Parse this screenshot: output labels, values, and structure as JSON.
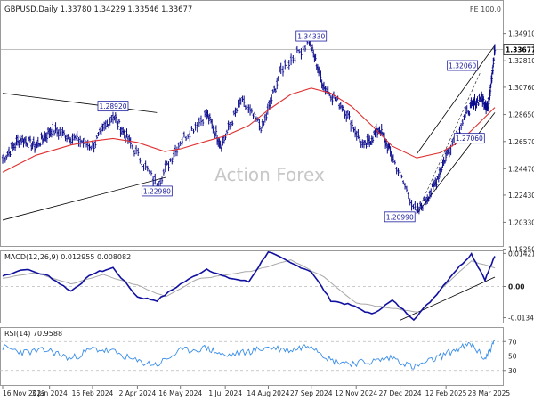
{
  "chart_data": {
    "type": "line",
    "header": "GBPUSD,Daily  1.33780 1.34229 1.33546 1.33677",
    "watermark": "Action Forex",
    "fe_label": "FE 100.0",
    "last_price": "1.33677",
    "x_ticks": [
      {
        "date": "2023-11-16",
        "label": "16 Nov 2023"
      },
      {
        "date": "2024-01-03",
        "label": "3 Jan 2024"
      },
      {
        "date": "2024-02-16",
        "label": "16 Feb 2024"
      },
      {
        "date": "2024-04-02",
        "label": "2 Apr 2024"
      },
      {
        "date": "2024-05-16",
        "label": "16 May 2024"
      },
      {
        "date": "2024-07-01",
        "label": "1 Jul 2024"
      },
      {
        "date": "2024-08-14",
        "label": "14 Aug 2024"
      },
      {
        "date": "2024-09-27",
        "label": "27 Sep 2024"
      },
      {
        "date": "2024-11-12",
        "label": "12 Nov 2024"
      },
      {
        "date": "2024-12-27",
        "label": "27 Dec 2024"
      },
      {
        "date": "2025-02-12",
        "label": "12 Feb 2025"
      },
      {
        "date": "2025-03-28",
        "label": "28 Mar 2025"
      }
    ],
    "price_panel": {
      "ylim": [
        1.185,
        1.375
      ],
      "y_ticks": [
        "1.34910",
        "1.32810",
        "1.30760",
        "1.28650",
        "1.26570",
        "1.24470",
        "1.22430",
        "1.20330",
        "1.18250"
      ],
      "series": [
        {
          "name": "price",
          "color": "#0a0a8c",
          "x": [
            "2023-11-16",
            "2023-12-04",
            "2023-12-20",
            "2024-01-05",
            "2024-01-25",
            "2024-02-16",
            "2024-03-08",
            "2024-03-26",
            "2024-04-22",
            "2024-05-16",
            "2024-06-12",
            "2024-06-27",
            "2024-07-17",
            "2024-08-08",
            "2024-08-27",
            "2024-09-25",
            "2024-10-10",
            "2024-10-30",
            "2024-11-20",
            "2024-12-06",
            "2024-12-20",
            "2025-01-13",
            "2025-01-30",
            "2025-02-14",
            "2025-03-07",
            "2025-03-20",
            "2025-03-27",
            "2025-04-03"
          ],
          "values": [
            1.252,
            1.268,
            1.262,
            1.275,
            1.269,
            1.262,
            1.286,
            1.264,
            1.232,
            1.266,
            1.287,
            1.263,
            1.297,
            1.276,
            1.321,
            1.343,
            1.308,
            1.292,
            1.261,
            1.276,
            1.252,
            1.21,
            1.23,
            1.258,
            1.29,
            1.3,
            1.292,
            1.3368
          ]
        },
        {
          "name": "moving average",
          "color": "#e03030",
          "x": [
            "2023-11-16",
            "2023-12-20",
            "2024-01-25",
            "2024-02-16",
            "2024-03-08",
            "2024-04-02",
            "2024-04-30",
            "2024-05-16",
            "2024-06-12",
            "2024-07-01",
            "2024-07-25",
            "2024-08-14",
            "2024-09-06",
            "2024-09-27",
            "2024-10-17",
            "2024-11-07",
            "2024-11-28",
            "2024-12-19",
            "2025-01-13",
            "2025-02-06",
            "2025-02-27",
            "2025-03-18",
            "2025-04-03"
          ],
          "values": [
            1.242,
            1.255,
            1.263,
            1.266,
            1.268,
            1.265,
            1.258,
            1.26,
            1.266,
            1.27,
            1.278,
            1.29,
            1.302,
            1.307,
            1.303,
            1.293,
            1.278,
            1.262,
            1.253,
            1.257,
            1.266,
            1.28,
            1.292
          ]
        }
      ],
      "price_labels": [
        {
          "label": "1.34330",
          "date": "2024-09-27",
          "value": 1.3433
        },
        {
          "label": "1.28920",
          "date": "2024-03-08",
          "value": 1.2892
        },
        {
          "label": "1.22980",
          "date": "2024-04-22",
          "value": 1.2298
        },
        {
          "label": "1.32060",
          "date": "2025-03-20",
          "value": 1.3206
        },
        {
          "label": "1.27060",
          "date": "2025-03-27",
          "value": 1.2706
        },
        {
          "label": "1.20990",
          "date": "2025-01-13",
          "value": 1.2099
        }
      ]
    },
    "macd_panel": {
      "label": "MACD(12,26,9) 0.012955 0.008082",
      "ylim": [
        -0.0155,
        0.0155
      ],
      "y_ticks": [
        "0.014211",
        "0.00",
        "-0.013418"
      ],
      "series": [
        {
          "name": "MACD",
          "color": "#1010a0",
          "x": [
            "2023-11-16",
            "2023-12-08",
            "2024-01-02",
            "2024-01-25",
            "2024-02-16",
            "2024-03-08",
            "2024-04-02",
            "2024-04-22",
            "2024-05-16",
            "2024-06-12",
            "2024-07-01",
            "2024-07-25",
            "2024-08-14",
            "2024-09-06",
            "2024-09-27",
            "2024-10-17",
            "2024-11-07",
            "2024-11-28",
            "2024-12-19",
            "2025-01-10",
            "2025-01-30",
            "2025-02-20",
            "2025-03-10",
            "2025-03-24",
            "2025-04-03"
          ],
          "values": [
            0.0045,
            0.0075,
            0.0045,
            -0.002,
            0.0055,
            0.008,
            -0.0045,
            -0.006,
            0.001,
            0.0075,
            0.004,
            0.002,
            0.015,
            0.01,
            0.0065,
            -0.006,
            -0.008,
            -0.012,
            -0.006,
            -0.014,
            -0.005,
            0.006,
            0.014,
            0.003,
            0.013
          ]
        },
        {
          "name": "Signal",
          "color": "#a8a8a8",
          "x": [
            "2023-11-16",
            "2023-12-20",
            "2024-01-25",
            "2024-02-27",
            "2024-04-02",
            "2024-05-01",
            "2024-06-01",
            "2024-07-01",
            "2024-08-01",
            "2024-09-06",
            "2024-10-10",
            "2024-11-12",
            "2024-12-12",
            "2025-01-16",
            "2025-02-12",
            "2025-03-10",
            "2025-04-03"
          ],
          "values": [
            0.0035,
            0.006,
            0.001,
            0.005,
            0.0005,
            -0.0045,
            0.003,
            0.005,
            0.007,
            0.0115,
            0.004,
            -0.007,
            -0.009,
            -0.011,
            0.001,
            0.011,
            0.008
          ]
        }
      ]
    },
    "rsi_panel": {
      "label": "RSI(14) 70.9588",
      "ylim": [
        10,
        90
      ],
      "y_ticks": [
        "70",
        "50",
        "30"
      ],
      "series": [
        {
          "name": "RSI",
          "color": "#3a8ee8",
          "x": [
            "2023-11-16",
            "2023-12-08",
            "2024-01-02",
            "2024-01-25",
            "2024-02-16",
            "2024-03-08",
            "2024-04-02",
            "2024-04-22",
            "2024-05-16",
            "2024-06-12",
            "2024-07-01",
            "2024-07-25",
            "2024-08-14",
            "2024-09-06",
            "2024-09-27",
            "2024-10-17",
            "2024-11-07",
            "2024-11-28",
            "2024-12-19",
            "2025-01-10",
            "2025-01-30",
            "2025-02-20",
            "2025-03-10",
            "2025-03-24",
            "2025-04-03"
          ],
          "values": [
            62,
            55,
            58,
            46,
            60,
            56,
            42,
            38,
            57,
            61,
            50,
            56,
            62,
            58,
            66,
            44,
            40,
            42,
            48,
            34,
            45,
            58,
            66,
            46,
            71
          ]
        }
      ]
    }
  }
}
